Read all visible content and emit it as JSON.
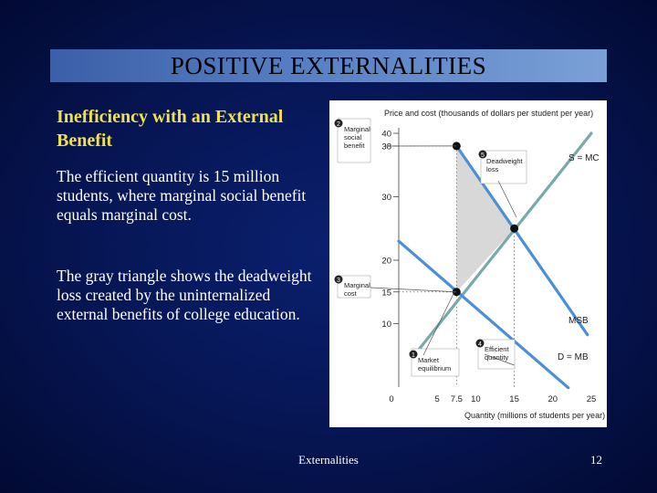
{
  "slide": {
    "title": "POSITIVE EXTERNALITIES",
    "subtitle": "Inefficiency with an External Benefit",
    "paragraph1": "The efficient quantity is 15 million students, where marginal social benefit equals marginal cost.",
    "paragraph2": "The gray triangle shows the deadweight loss created by the uninternalized external benefits of college education.",
    "footer_center": "Externalities",
    "page_number": "12"
  },
  "colors": {
    "title_bar": "#5a82c6",
    "subtitle": "#f0e050",
    "demand_line": "#4a90d9",
    "msb_line": "#7aaaa8",
    "point": "#111111",
    "deadweight": "#d8d8d8"
  },
  "chart_data": {
    "type": "line",
    "ylabel": "Price and cost (thousands of dollars per student per year)",
    "xlabel": "Quantity (millions of students per year)",
    "xlim": [
      0,
      25
    ],
    "ylim": [
      0,
      40
    ],
    "x_ticks": [
      "0",
      "5",
      "7.5",
      "10",
      "15",
      "20",
      "25"
    ],
    "y_ticks": [
      "10",
      "15",
      "20",
      "30",
      "38",
      "40"
    ],
    "series": [
      {
        "name": "S = MC",
        "x": [
          2,
          25
        ],
        "y": [
          5,
          40
        ],
        "color": "#7aaaa8"
      },
      {
        "name": "MSB",
        "x": [
          7.5,
          24.5
        ],
        "y": [
          38,
          8.25
        ],
        "color": "#4a90d9"
      },
      {
        "name": "D = MB",
        "x": [
          0,
          22
        ],
        "y": [
          23,
          -0.1
        ],
        "color": "#4a90d9"
      }
    ],
    "points": [
      {
        "x": 7.5,
        "y": 38
      },
      {
        "x": 15,
        "y": 25
      },
      {
        "x": 7.5,
        "y": 15
      }
    ],
    "deadweight_triangle": [
      [
        7.5,
        38
      ],
      [
        15,
        25
      ],
      [
        7.5,
        15
      ]
    ],
    "annotations": [
      {
        "num": "1",
        "text": [
          "Market",
          "equilibrium"
        ]
      },
      {
        "num": "2",
        "text": [
          "Marginal",
          "social",
          "benefit"
        ]
      },
      {
        "num": "3",
        "text": [
          "Marginal",
          "cost"
        ]
      },
      {
        "num": "4",
        "text": [
          "Efficient",
          "quantity"
        ]
      },
      {
        "num": "5",
        "text": [
          "Deadweight",
          "loss"
        ]
      }
    ]
  }
}
